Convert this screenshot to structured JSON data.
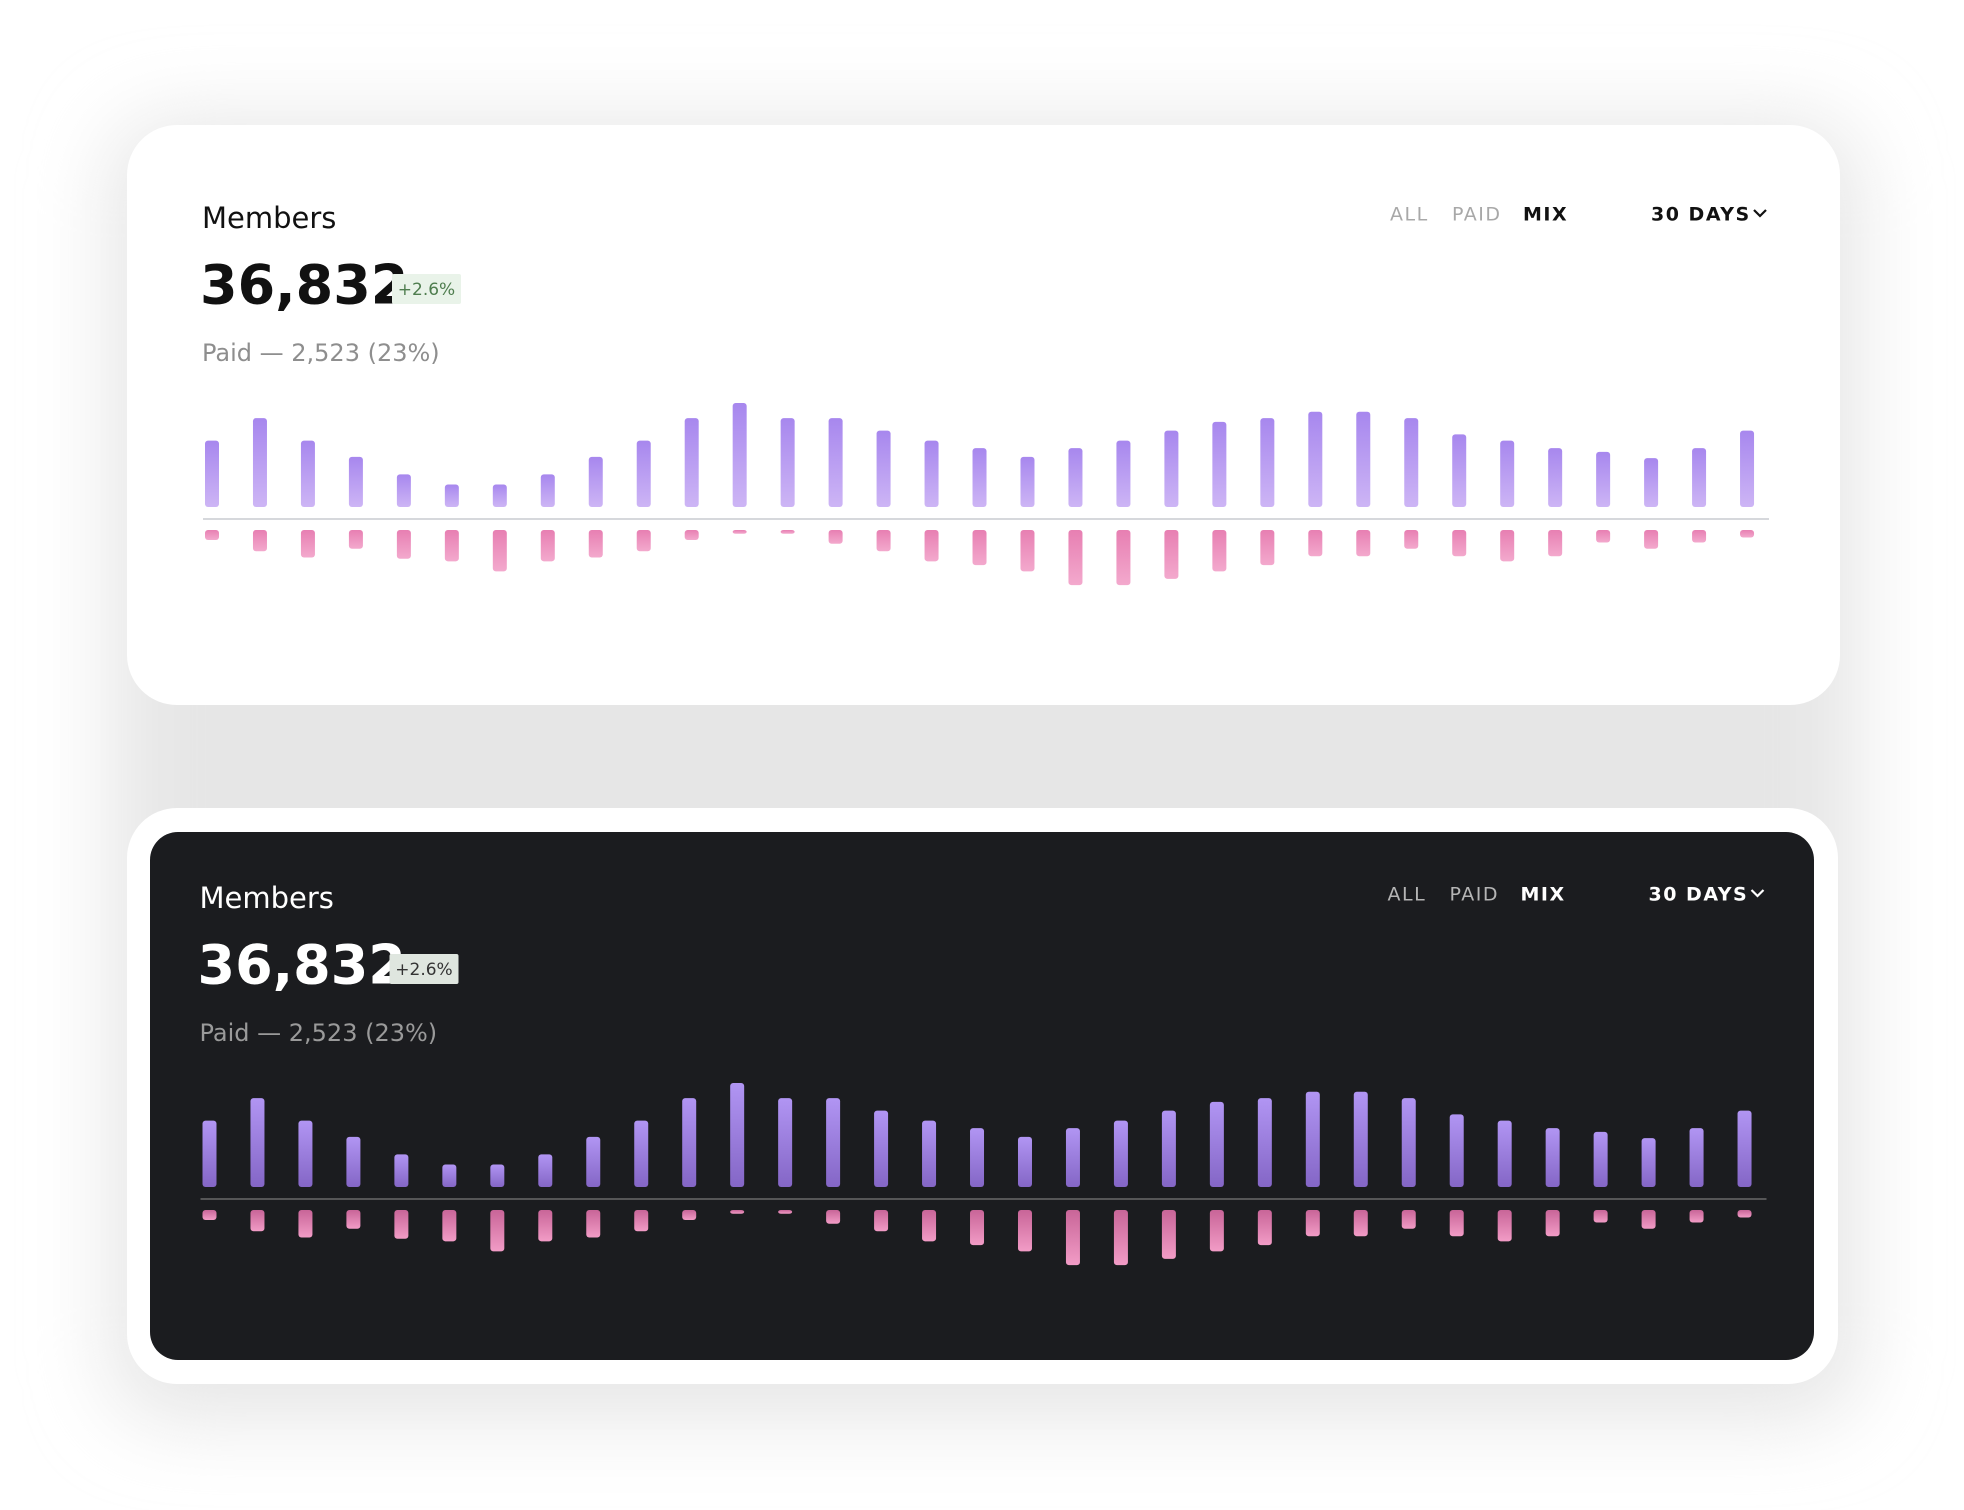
{
  "chart_data": [
    {
      "type": "bar",
      "theme": "light",
      "title": "Members",
      "value": "36,832",
      "change": "+2.6%",
      "subtitle": "Paid — 2,523 (23%)",
      "tabs": [
        "ALL",
        "PAID",
        "MIX"
      ],
      "active_tab": 2,
      "range": "30 DAYS",
      "series": [
        {
          "color": "#b08ff0",
          "values": [
            53,
            71,
            53,
            40,
            26,
            18,
            18,
            26,
            40,
            53,
            71,
            83,
            71,
            71,
            61,
            53,
            47,
            40,
            47,
            53,
            61,
            68,
            71,
            76,
            76,
            71,
            58,
            53,
            47,
            44,
            39,
            47,
            61
          ]
        },
        {
          "color": "#ec8fbd",
          "values": [
            -8,
            -17,
            -22,
            -15,
            -23,
            -25,
            -33,
            -25,
            -22,
            -17,
            -8,
            -3,
            -3,
            -11,
            -17,
            -25,
            -28,
            -33,
            -44,
            -44,
            -39,
            -33,
            -28,
            -21,
            -21,
            -15,
            -21,
            -25,
            -21,
            -10,
            -15,
            -10,
            -6
          ]
        }
      ]
    },
    {
      "type": "bar",
      "theme": "dark",
      "title": "Members",
      "value": "36,832",
      "change": "+2.6%",
      "subtitle": "Paid — 2,523 (23%)",
      "tabs": [
        "ALL",
        "PAID",
        "MIX"
      ],
      "active_tab": 2,
      "range": "30 DAYS",
      "series": [
        {
          "color": "#a386e6",
          "values": [
            53,
            71,
            53,
            40,
            26,
            18,
            18,
            26,
            40,
            53,
            71,
            83,
            71,
            71,
            61,
            53,
            47,
            40,
            47,
            53,
            61,
            68,
            71,
            76,
            76,
            71,
            58,
            53,
            47,
            44,
            39,
            47,
            61
          ]
        },
        {
          "color": "#e582b4",
          "values": [
            -8,
            -17,
            -22,
            -15,
            -23,
            -25,
            -33,
            -25,
            -22,
            -17,
            -8,
            -3,
            -3,
            -11,
            -17,
            -25,
            -28,
            -33,
            -44,
            -44,
            -39,
            -33,
            -28,
            -21,
            -21,
            -15,
            -21,
            -25,
            -21,
            -10,
            -15,
            -10,
            -6
          ]
        }
      ]
    }
  ]
}
